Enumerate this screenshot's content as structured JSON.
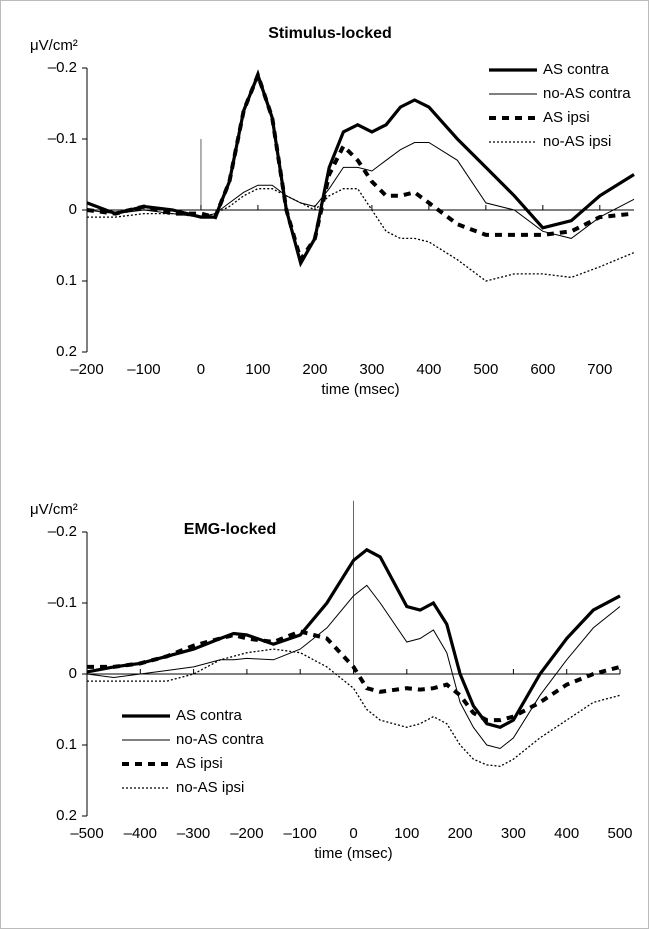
{
  "chart_data": [
    {
      "type": "line",
      "title": "Stimulus-locked",
      "y_label": "μV/cm²",
      "x_label": "time (msec)",
      "x": [
        -200,
        -150,
        -100,
        -50,
        0,
        25,
        50,
        75,
        100,
        125,
        150,
        175,
        200,
        225,
        250,
        275,
        300,
        325,
        350,
        375,
        400,
        450,
        500,
        550,
        600,
        650,
        700,
        760
      ],
      "series": [
        {
          "name": "AS contra",
          "color": "#000000",
          "style": "solid",
          "width": 3.2,
          "values": [
            -0.01,
            0.005,
            -0.005,
            0,
            0.01,
            0.01,
            -0.04,
            -0.14,
            -0.19,
            -0.13,
            0,
            0.075,
            0.04,
            -0.06,
            -0.11,
            -0.12,
            -0.11,
            -0.12,
            -0.145,
            -0.155,
            -0.145,
            -0.1,
            -0.06,
            -0.02,
            0.025,
            0.015,
            -0.02,
            -0.05
          ]
        },
        {
          "name": "no-AS contra",
          "color": "#000000",
          "style": "solid",
          "width": 1,
          "values": [
            0,
            0.005,
            0,
            0.005,
            0.01,
            0.005,
            -0.01,
            -0.025,
            -0.035,
            -0.035,
            -0.02,
            -0.01,
            -0.005,
            -0.03,
            -0.06,
            -0.06,
            -0.055,
            -0.07,
            -0.085,
            -0.095,
            -0.095,
            -0.07,
            -0.01,
            0,
            0.03,
            0.04,
            0.01,
            -0.015
          ]
        },
        {
          "name": "AS ipsi",
          "color": "#000000",
          "style": "dashed",
          "width": 4,
          "values": [
            0,
            0.005,
            -0.005,
            0.005,
            0.005,
            0.01,
            -0.04,
            -0.14,
            -0.19,
            -0.13,
            0,
            0.07,
            0.04,
            -0.05,
            -0.09,
            -0.07,
            -0.04,
            -0.02,
            -0.02,
            -0.025,
            -0.01,
            0.02,
            0.035,
            0.035,
            0.035,
            0.03,
            0.01,
            0.005
          ]
        },
        {
          "name": "no-AS ipsi",
          "color": "#000000",
          "style": "dotted",
          "width": 1.3,
          "values": [
            0.01,
            0.01,
            0.005,
            0.005,
            0.01,
            0.005,
            -0.005,
            -0.02,
            -0.03,
            -0.03,
            -0.02,
            -0.01,
            0,
            -0.02,
            -0.03,
            -0.03,
            0,
            0.03,
            0.04,
            0.04,
            0.045,
            0.07,
            0.1,
            0.09,
            0.09,
            0.095,
            0.08,
            0.06
          ]
        }
      ],
      "xlim": [
        -200,
        760
      ],
      "xticks": [
        {
          "value": -200,
          "label": "–200"
        },
        {
          "value": -100,
          "label": "–100"
        },
        0,
        100,
        200,
        300,
        400,
        500,
        600,
        700
      ],
      "ylim": [
        0.2,
        -0.2
      ],
      "yticks": [
        {
          "value": -0.2,
          "label": "–0.2"
        },
        {
          "value": -0.1,
          "label": "–0.1"
        },
        0,
        0.1,
        0.2
      ],
      "legend": "upper right"
    },
    {
      "type": "line",
      "title": "EMG-locked",
      "y_label": "μV/cm²",
      "x_label": "time (msec)",
      "x": [
        -500,
        -450,
        -400,
        -350,
        -300,
        -250,
        -225,
        -200,
        -150,
        -100,
        -50,
        0,
        25,
        50,
        100,
        125,
        150,
        175,
        200,
        225,
        250,
        275,
        300,
        350,
        400,
        450,
        500
      ],
      "series": [
        {
          "name": "AS contra",
          "color": "#000000",
          "style": "solid",
          "width": 3.2,
          "values": [
            -0.003,
            -0.01,
            -0.015,
            -0.025,
            -0.035,
            -0.05,
            -0.057,
            -0.055,
            -0.042,
            -0.055,
            -0.1,
            -0.16,
            -0.175,
            -0.165,
            -0.095,
            -0.09,
            -0.1,
            -0.07,
            0,
            0.045,
            0.07,
            0.075,
            0.065,
            0,
            -0.05,
            -0.09,
            -0.11
          ]
        },
        {
          "name": "no-AS contra",
          "color": "#000000",
          "style": "solid",
          "width": 1,
          "values": [
            0,
            0.005,
            0,
            -0.005,
            -0.01,
            -0.02,
            -0.02,
            -0.022,
            -0.02,
            -0.035,
            -0.065,
            -0.11,
            -0.125,
            -0.1,
            -0.045,
            -0.05,
            -0.062,
            -0.03,
            0.04,
            0.075,
            0.1,
            0.105,
            0.09,
            0.03,
            -0.02,
            -0.065,
            -0.095
          ]
        },
        {
          "name": "AS ipsi",
          "color": "#000000",
          "style": "dashed",
          "width": 4,
          "values": [
            -0.01,
            -0.01,
            -0.015,
            -0.025,
            -0.04,
            -0.05,
            -0.055,
            -0.05,
            -0.045,
            -0.06,
            -0.05,
            -0.01,
            0.02,
            0.025,
            0.02,
            0.022,
            0.02,
            0.015,
            0.03,
            0.055,
            0.065,
            0.065,
            0.06,
            0.04,
            0.015,
            0,
            -0.01
          ]
        },
        {
          "name": "no-AS ipsi",
          "color": "#000000",
          "style": "dotted",
          "width": 1.3,
          "values": [
            0.01,
            0.01,
            0.01,
            0.01,
            0,
            -0.02,
            -0.025,
            -0.03,
            -0.035,
            -0.03,
            -0.01,
            0.02,
            0.05,
            0.065,
            0.075,
            0.07,
            0.06,
            0.07,
            0.1,
            0.12,
            0.128,
            0.13,
            0.12,
            0.09,
            0.065,
            0.04,
            0.03
          ]
        }
      ],
      "xlim": [
        -500,
        500
      ],
      "xticks": [
        {
          "value": -500,
          "label": "–500"
        },
        {
          "value": -400,
          "label": "–400"
        },
        {
          "value": -300,
          "label": "–300"
        },
        {
          "value": -200,
          "label": "–200"
        },
        {
          "value": -100,
          "label": "–100"
        },
        0,
        100,
        200,
        300,
        400,
        500
      ],
      "ylim": [
        0.2,
        -0.2
      ],
      "yticks": [
        {
          "value": -0.2,
          "label": "–0.2"
        },
        {
          "value": -0.1,
          "label": "–0.1"
        },
        0,
        0.1,
        0.2
      ],
      "legend": "lower left"
    }
  ]
}
